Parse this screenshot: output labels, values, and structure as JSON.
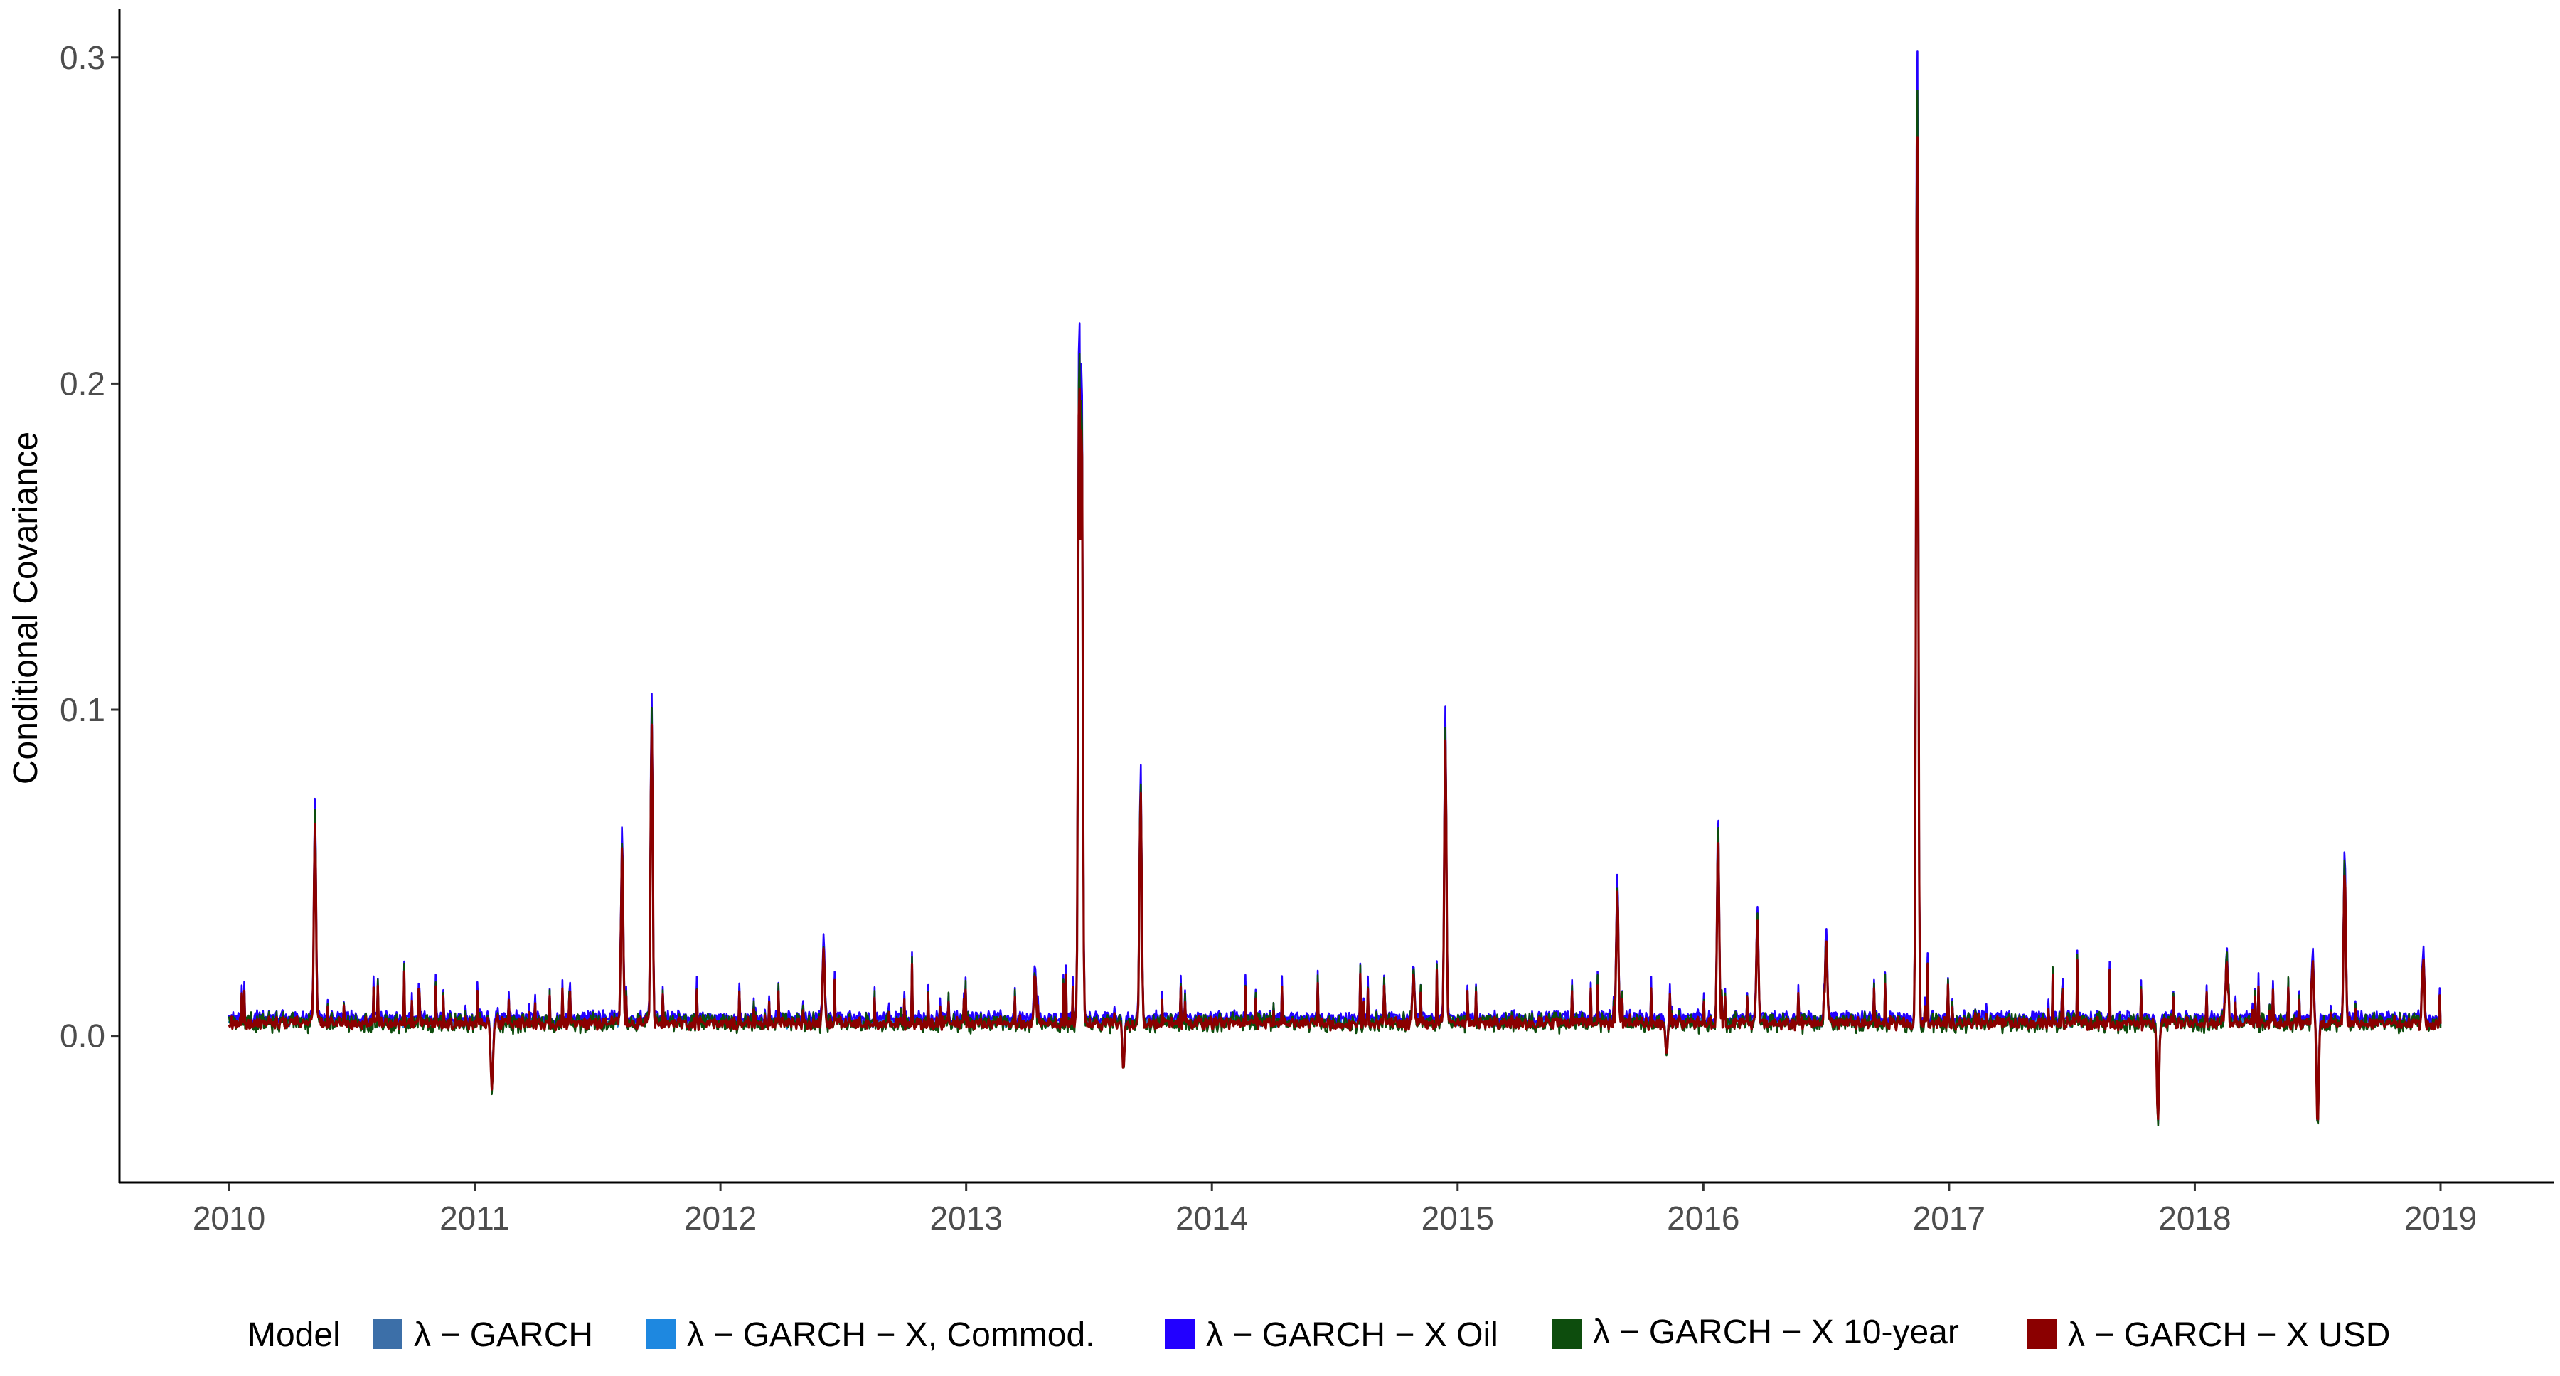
{
  "chart_data": {
    "type": "line",
    "title": "",
    "xlabel": "",
    "ylabel": "Conditional Covariance",
    "xlim": [
      2010,
      2019
    ],
    "ylim": [
      -0.045,
      0.315
    ],
    "x_ticks": [
      "2010",
      "2011",
      "2012",
      "2013",
      "2014",
      "2015",
      "2016",
      "2017",
      "2018",
      "2019"
    ],
    "y_ticks": [
      "0.0",
      "0.1",
      "0.2",
      "0.3"
    ],
    "grid": false,
    "legend_position": "bottom",
    "legend_title": "Model",
    "series": [
      {
        "name": "λ − GARCH",
        "color": "#3c6fa8"
      },
      {
        "name": "λ − GARCH − X, Commod.",
        "color": "#1e88e0"
      },
      {
        "name": "λ − GARCH − X Oil",
        "color": "#2200ff"
      },
      {
        "name": "λ − GARCH − X 10-year",
        "color": "#0d4d0d"
      },
      {
        "name": "λ − GARCH − X USD",
        "color": "#8b0000"
      }
    ],
    "baseline": 0.004,
    "peaks": [
      {
        "x": 2010.35,
        "y": 0.069
      },
      {
        "x": 2011.07,
        "y": -0.018
      },
      {
        "x": 2011.6,
        "y": 0.061
      },
      {
        "x": 2011.72,
        "y": 0.1
      },
      {
        "x": 2012.42,
        "y": 0.028
      },
      {
        "x": 2013.28,
        "y": 0.02
      },
      {
        "x": 2013.46,
        "y": 0.222
      },
      {
        "x": 2013.47,
        "y": 0.207
      },
      {
        "x": 2013.64,
        "y": -0.011
      },
      {
        "x": 2013.71,
        "y": 0.08
      },
      {
        "x": 2014.82,
        "y": 0.02
      },
      {
        "x": 2014.95,
        "y": 0.096
      },
      {
        "x": 2015.65,
        "y": 0.047
      },
      {
        "x": 2015.85,
        "y": -0.006
      },
      {
        "x": 2016.06,
        "y": 0.064
      },
      {
        "x": 2016.22,
        "y": 0.037
      },
      {
        "x": 2016.5,
        "y": 0.031
      },
      {
        "x": 2016.87,
        "y": 0.3
      },
      {
        "x": 2017.85,
        "y": -0.028
      },
      {
        "x": 2018.13,
        "y": 0.025
      },
      {
        "x": 2018.48,
        "y": 0.024
      },
      {
        "x": 2018.5,
        "y": -0.029
      },
      {
        "x": 2018.61,
        "y": 0.054
      },
      {
        "x": 2018.93,
        "y": 0.025
      }
    ]
  }
}
